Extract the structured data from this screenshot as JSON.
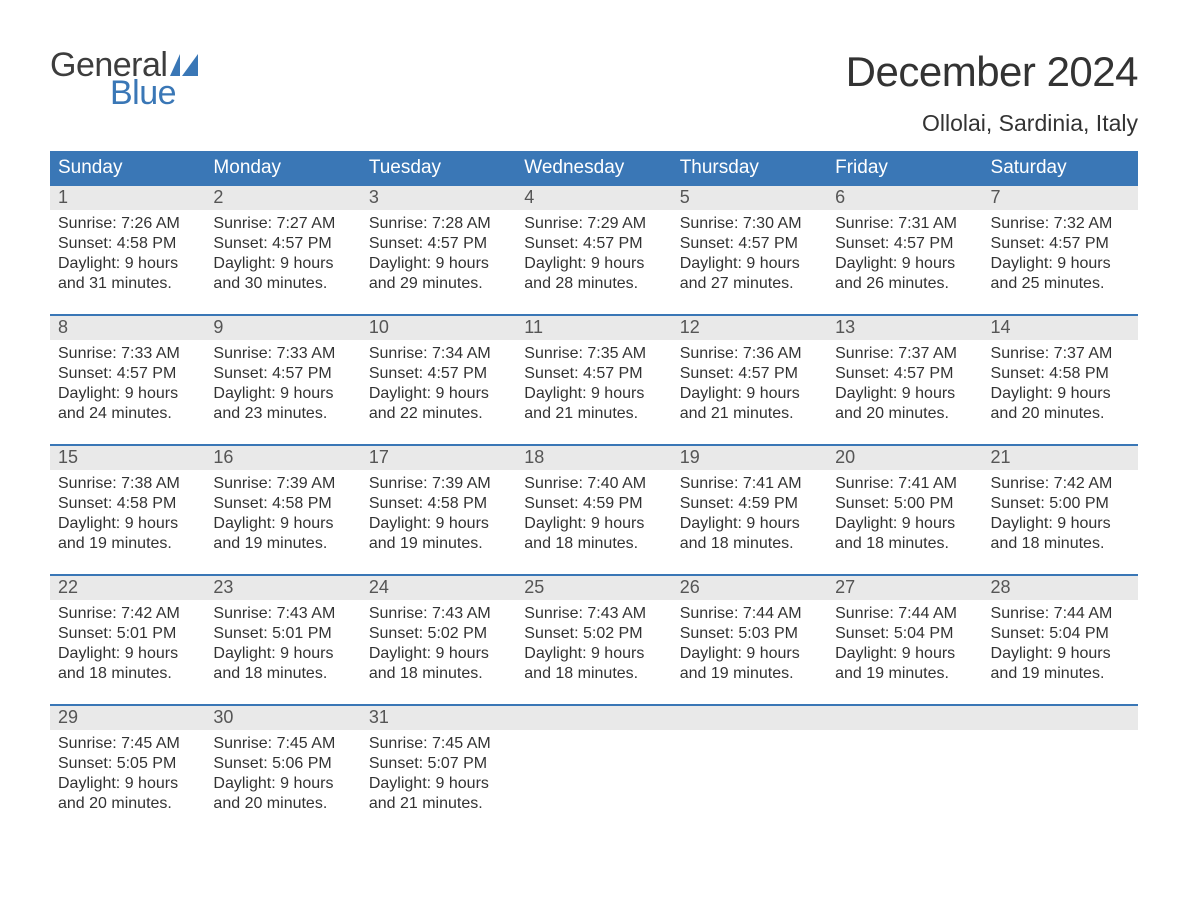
{
  "brand": {
    "word1": "General",
    "word2": "Blue",
    "text_color_1": "#3d3d3d",
    "text_color_2": "#3a77b6",
    "flag_color": "#3a77b6"
  },
  "title": {
    "month_year": "December 2024",
    "location": "Ollolai, Sardinia, Italy"
  },
  "colors": {
    "header_bg": "#3a77b6",
    "header_text": "#ffffff",
    "daynum_bg": "#e9e9e9",
    "daynum_text": "#555555",
    "body_text": "#333333",
    "week_divider": "#3a77b6",
    "page_bg": "#ffffff"
  },
  "fonts": {
    "title_size_pt": 32,
    "location_size_pt": 17,
    "dow_size_pt": 14,
    "daynum_size_pt": 13,
    "body_size_pt": 12
  },
  "days_of_week": [
    "Sunday",
    "Monday",
    "Tuesday",
    "Wednesday",
    "Thursday",
    "Friday",
    "Saturday"
  ],
  "weeks": [
    [
      {
        "n": "1",
        "sunrise": "Sunrise: 7:26 AM",
        "sunset": "Sunset: 4:58 PM",
        "d1": "Daylight: 9 hours",
        "d2": "and 31 minutes."
      },
      {
        "n": "2",
        "sunrise": "Sunrise: 7:27 AM",
        "sunset": "Sunset: 4:57 PM",
        "d1": "Daylight: 9 hours",
        "d2": "and 30 minutes."
      },
      {
        "n": "3",
        "sunrise": "Sunrise: 7:28 AM",
        "sunset": "Sunset: 4:57 PM",
        "d1": "Daylight: 9 hours",
        "d2": "and 29 minutes."
      },
      {
        "n": "4",
        "sunrise": "Sunrise: 7:29 AM",
        "sunset": "Sunset: 4:57 PM",
        "d1": "Daylight: 9 hours",
        "d2": "and 28 minutes."
      },
      {
        "n": "5",
        "sunrise": "Sunrise: 7:30 AM",
        "sunset": "Sunset: 4:57 PM",
        "d1": "Daylight: 9 hours",
        "d2": "and 27 minutes."
      },
      {
        "n": "6",
        "sunrise": "Sunrise: 7:31 AM",
        "sunset": "Sunset: 4:57 PM",
        "d1": "Daylight: 9 hours",
        "d2": "and 26 minutes."
      },
      {
        "n": "7",
        "sunrise": "Sunrise: 7:32 AM",
        "sunset": "Sunset: 4:57 PM",
        "d1": "Daylight: 9 hours",
        "d2": "and 25 minutes."
      }
    ],
    [
      {
        "n": "8",
        "sunrise": "Sunrise: 7:33 AM",
        "sunset": "Sunset: 4:57 PM",
        "d1": "Daylight: 9 hours",
        "d2": "and 24 minutes."
      },
      {
        "n": "9",
        "sunrise": "Sunrise: 7:33 AM",
        "sunset": "Sunset: 4:57 PM",
        "d1": "Daylight: 9 hours",
        "d2": "and 23 minutes."
      },
      {
        "n": "10",
        "sunrise": "Sunrise: 7:34 AM",
        "sunset": "Sunset: 4:57 PM",
        "d1": "Daylight: 9 hours",
        "d2": "and 22 minutes."
      },
      {
        "n": "11",
        "sunrise": "Sunrise: 7:35 AM",
        "sunset": "Sunset: 4:57 PM",
        "d1": "Daylight: 9 hours",
        "d2": "and 21 minutes."
      },
      {
        "n": "12",
        "sunrise": "Sunrise: 7:36 AM",
        "sunset": "Sunset: 4:57 PM",
        "d1": "Daylight: 9 hours",
        "d2": "and 21 minutes."
      },
      {
        "n": "13",
        "sunrise": "Sunrise: 7:37 AM",
        "sunset": "Sunset: 4:57 PM",
        "d1": "Daylight: 9 hours",
        "d2": "and 20 minutes."
      },
      {
        "n": "14",
        "sunrise": "Sunrise: 7:37 AM",
        "sunset": "Sunset: 4:58 PM",
        "d1": "Daylight: 9 hours",
        "d2": "and 20 minutes."
      }
    ],
    [
      {
        "n": "15",
        "sunrise": "Sunrise: 7:38 AM",
        "sunset": "Sunset: 4:58 PM",
        "d1": "Daylight: 9 hours",
        "d2": "and 19 minutes."
      },
      {
        "n": "16",
        "sunrise": "Sunrise: 7:39 AM",
        "sunset": "Sunset: 4:58 PM",
        "d1": "Daylight: 9 hours",
        "d2": "and 19 minutes."
      },
      {
        "n": "17",
        "sunrise": "Sunrise: 7:39 AM",
        "sunset": "Sunset: 4:58 PM",
        "d1": "Daylight: 9 hours",
        "d2": "and 19 minutes."
      },
      {
        "n": "18",
        "sunrise": "Sunrise: 7:40 AM",
        "sunset": "Sunset: 4:59 PM",
        "d1": "Daylight: 9 hours",
        "d2": "and 18 minutes."
      },
      {
        "n": "19",
        "sunrise": "Sunrise: 7:41 AM",
        "sunset": "Sunset: 4:59 PM",
        "d1": "Daylight: 9 hours",
        "d2": "and 18 minutes."
      },
      {
        "n": "20",
        "sunrise": "Sunrise: 7:41 AM",
        "sunset": "Sunset: 5:00 PM",
        "d1": "Daylight: 9 hours",
        "d2": "and 18 minutes."
      },
      {
        "n": "21",
        "sunrise": "Sunrise: 7:42 AM",
        "sunset": "Sunset: 5:00 PM",
        "d1": "Daylight: 9 hours",
        "d2": "and 18 minutes."
      }
    ],
    [
      {
        "n": "22",
        "sunrise": "Sunrise: 7:42 AM",
        "sunset": "Sunset: 5:01 PM",
        "d1": "Daylight: 9 hours",
        "d2": "and 18 minutes."
      },
      {
        "n": "23",
        "sunrise": "Sunrise: 7:43 AM",
        "sunset": "Sunset: 5:01 PM",
        "d1": "Daylight: 9 hours",
        "d2": "and 18 minutes."
      },
      {
        "n": "24",
        "sunrise": "Sunrise: 7:43 AM",
        "sunset": "Sunset: 5:02 PM",
        "d1": "Daylight: 9 hours",
        "d2": "and 18 minutes."
      },
      {
        "n": "25",
        "sunrise": "Sunrise: 7:43 AM",
        "sunset": "Sunset: 5:02 PM",
        "d1": "Daylight: 9 hours",
        "d2": "and 18 minutes."
      },
      {
        "n": "26",
        "sunrise": "Sunrise: 7:44 AM",
        "sunset": "Sunset: 5:03 PM",
        "d1": "Daylight: 9 hours",
        "d2": "and 19 minutes."
      },
      {
        "n": "27",
        "sunrise": "Sunrise: 7:44 AM",
        "sunset": "Sunset: 5:04 PM",
        "d1": "Daylight: 9 hours",
        "d2": "and 19 minutes."
      },
      {
        "n": "28",
        "sunrise": "Sunrise: 7:44 AM",
        "sunset": "Sunset: 5:04 PM",
        "d1": "Daylight: 9 hours",
        "d2": "and 19 minutes."
      }
    ],
    [
      {
        "n": "29",
        "sunrise": "Sunrise: 7:45 AM",
        "sunset": "Sunset: 5:05 PM",
        "d1": "Daylight: 9 hours",
        "d2": "and 20 minutes."
      },
      {
        "n": "30",
        "sunrise": "Sunrise: 7:45 AM",
        "sunset": "Sunset: 5:06 PM",
        "d1": "Daylight: 9 hours",
        "d2": "and 20 minutes."
      },
      {
        "n": "31",
        "sunrise": "Sunrise: 7:45 AM",
        "sunset": "Sunset: 5:07 PM",
        "d1": "Daylight: 9 hours",
        "d2": "and 21 minutes."
      },
      {
        "empty": true
      },
      {
        "empty": true
      },
      {
        "empty": true
      },
      {
        "empty": true
      }
    ]
  ]
}
